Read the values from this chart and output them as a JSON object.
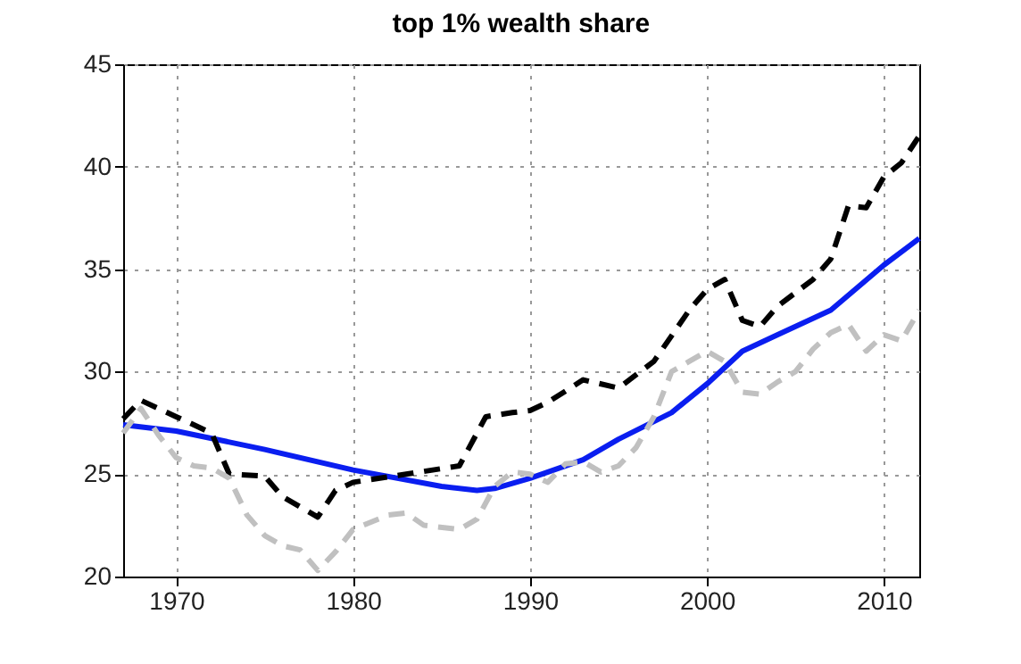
{
  "chart_data": {
    "type": "line",
    "title": "top 1% wealth share",
    "xlim": [
      1967,
      2012
    ],
    "xticks": [
      1970,
      1980,
      1990,
      2000,
      2010
    ],
    "ylim": [
      20,
      45
    ],
    "yticks": [
      20,
      25,
      30,
      35,
      40,
      45
    ],
    "grid": true,
    "series": [
      {
        "color": "#0a1ef0",
        "line_style": "solid",
        "x": [
          1967,
          1970,
          1975,
          1980,
          1985,
          1987,
          1988,
          1990,
          1993,
          1995,
          1998,
          2000,
          2002,
          2004,
          2007,
          2010,
          2012
        ],
        "values": [
          27.4,
          27.1,
          26.2,
          25.2,
          24.4,
          24.2,
          24.3,
          24.8,
          25.7,
          26.7,
          28.0,
          29.4,
          31.0,
          31.8,
          33.0,
          35.2,
          36.5
        ]
      },
      {
        "color": "#000000",
        "line_style": "dashed",
        "x": [
          1967,
          1968,
          1970,
          1972,
          1973,
          1975,
          1976,
          1978,
          1979,
          1980,
          1983,
          1986,
          1987.5,
          1989,
          1990,
          1991,
          1993,
          1995,
          1997,
          1999,
          2000,
          2001,
          2002,
          2003,
          2004,
          2006,
          2007,
          2008,
          2009,
          2010,
          2011,
          2012
        ],
        "values": [
          27.7,
          28.6,
          27.8,
          27.0,
          25.0,
          24.9,
          23.9,
          22.9,
          24.2,
          24.6,
          25.0,
          25.4,
          27.8,
          28.0,
          28.1,
          28.5,
          29.6,
          29.2,
          30.5,
          33.0,
          34.0,
          34.5,
          32.5,
          32.2,
          33.2,
          34.5,
          35.5,
          38.1,
          38.0,
          39.5,
          40.2,
          41.5
        ]
      },
      {
        "color": "#c0c0c0",
        "line_style": "dashed",
        "x": [
          1967,
          1968,
          1969,
          1970,
          1971,
          1972,
          1973,
          1974,
          1975,
          1976,
          1977,
          1978,
          1979,
          1980,
          1982,
          1983,
          1984,
          1986,
          1987,
          1988,
          1989,
          1990,
          1991,
          1992,
          1993,
          1994,
          1995,
          1996,
          1997,
          1998,
          1999,
          2000,
          2001,
          2002,
          2003,
          2004,
          2005,
          2006,
          2007,
          2008,
          2009,
          2010,
          2011,
          2012
        ],
        "values": [
          27.0,
          28.2,
          26.9,
          25.8,
          25.4,
          25.3,
          24.8,
          23.0,
          22.0,
          21.5,
          21.3,
          20.3,
          21.2,
          22.3,
          23.0,
          23.1,
          22.5,
          22.3,
          22.8,
          24.4,
          25.1,
          25.0,
          24.6,
          25.5,
          25.6,
          25.1,
          25.4,
          26.3,
          27.8,
          30.0,
          30.5,
          31.0,
          30.5,
          29.0,
          28.9,
          29.5,
          30.0,
          31.1,
          31.9,
          32.3,
          31.0,
          31.8,
          31.5,
          33.0
        ]
      }
    ]
  }
}
